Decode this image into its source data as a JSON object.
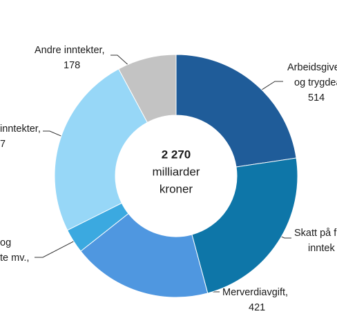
{
  "chart_data": {
    "type": "donut",
    "center_text": [
      "2 270",
      "milliarder",
      "kroner"
    ],
    "labels": [
      [
        "Arbeidsgive",
        "og trygdea",
        "514"
      ],
      [
        "Skatt på f",
        "inntek"
      ],
      [
        "Merverdiavgift,",
        "421"
      ],
      [
        "og",
        "te mv.,"
      ],
      [
        "inntekter,",
        "7"
      ],
      [
        "Andre inntekter,",
        "178"
      ]
    ],
    "values": [
      514,
      526,
      421,
      74,
      557,
      178
    ],
    "colors": [
      "#1f5c99",
      "#0e76a8",
      "#4f97e0",
      "#3ba9e0",
      "#97d7f7",
      "#c3c3c3"
    ]
  }
}
